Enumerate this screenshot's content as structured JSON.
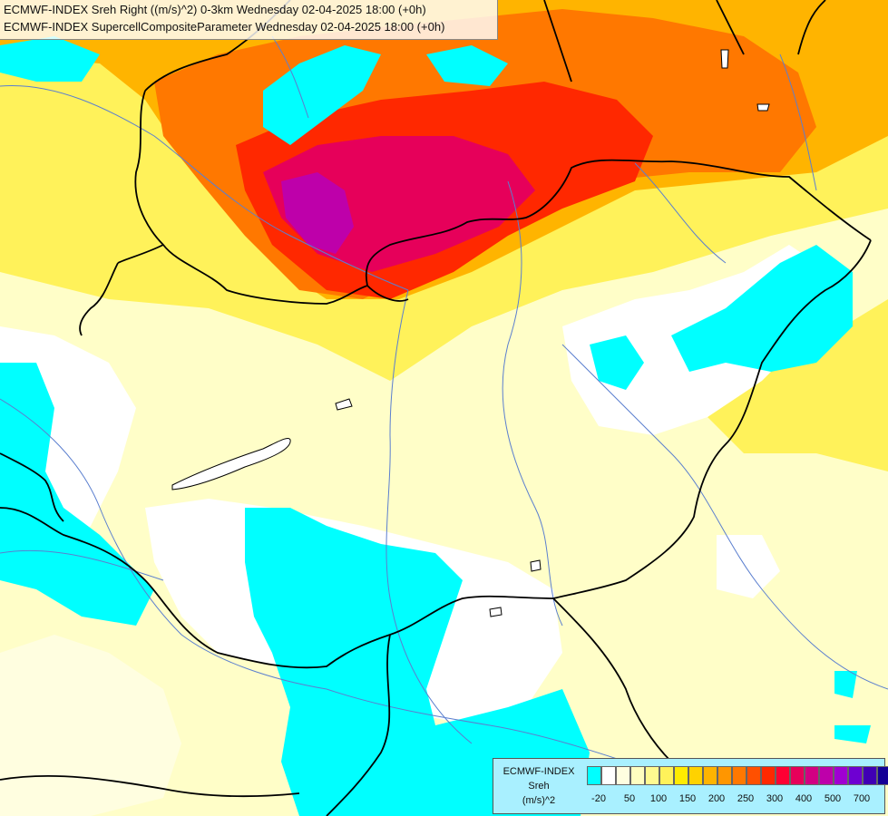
{
  "header": {
    "line1": "ECMWF-INDEX Sreh Right ((m/s)^2) 0-3km Wednesday 02-04-2025 18:00 (+0h)",
    "line2": "ECMWF-INDEX SupercellCompositeParameter Wednesday 02-04-2025 18:00 (+0h)"
  },
  "legend": {
    "title1": "ECMWF-INDEX",
    "title2": "Sreh",
    "title3": "(m/s)^2",
    "colors": [
      "#00ffff",
      "#ffffff",
      "#fffee0",
      "#fffec0",
      "#fffa90",
      "#fff25a",
      "#ffeb00",
      "#ffd200",
      "#ffb400",
      "#ff9600",
      "#ff7800",
      "#ff5000",
      "#ff2800",
      "#ff0033",
      "#e6005a",
      "#d20082",
      "#be00aa",
      "#a000d2",
      "#6e00d2",
      "#4000b4",
      "#140096"
    ],
    "ticks": [
      "-20",
      "50",
      "100",
      "150",
      "200",
      "250",
      "300",
      "400",
      "500",
      "700"
    ]
  }
}
